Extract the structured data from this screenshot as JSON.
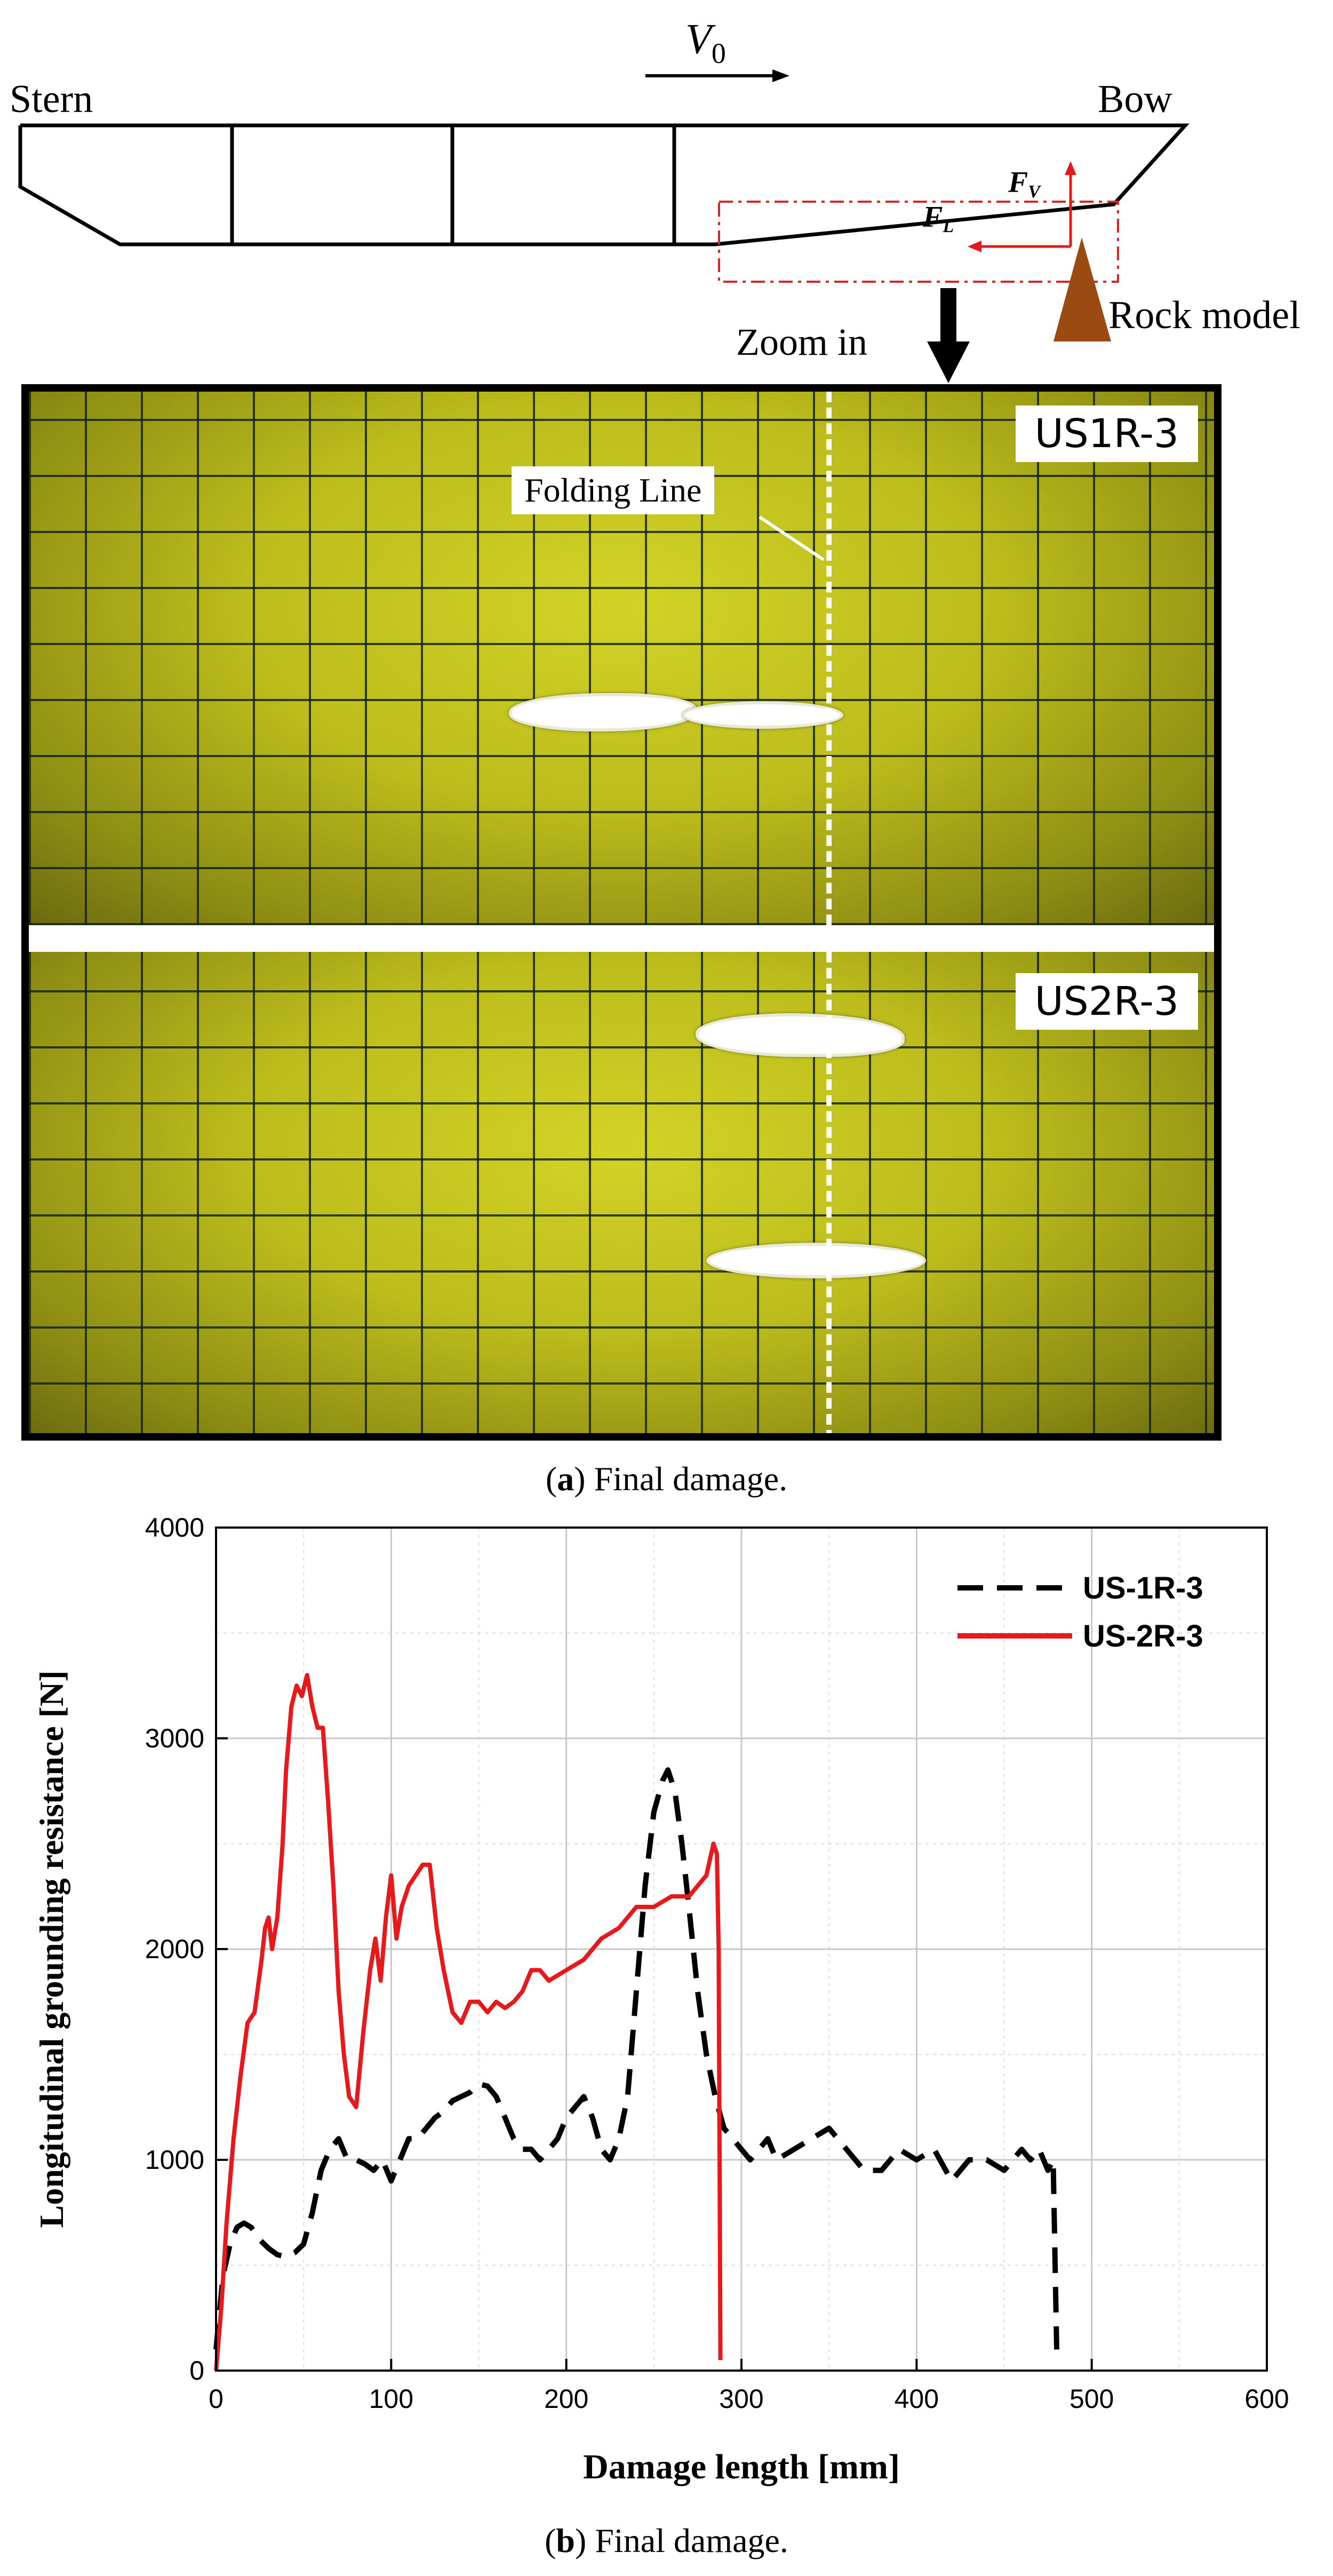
{
  "schematic": {
    "stern_label": "Stern",
    "bow_label": "Bow",
    "velocity_label": "V",
    "velocity_subscript": "0",
    "fv_label": "F",
    "fv_subscript": "V",
    "fl_label": "F",
    "fl_subscript": "L",
    "rock_label": "Rock model",
    "zoom_label": "Zoom in"
  },
  "photos": {
    "top_label": "US1R-3",
    "bottom_label": "US2R-3",
    "folding_line_label": "Folding Line"
  },
  "caption_a": {
    "letter": "a",
    "text": " Final damage."
  },
  "caption_b": {
    "letter": "b",
    "text": " Final damage."
  },
  "colors": {
    "us1": "#000000",
    "us2": "#e8191c",
    "photo": "#c5c520",
    "rock": "#9b4a12",
    "force": "#e31a1c"
  },
  "chart_data": {
    "type": "line",
    "xlabel": "Damage length [mm]",
    "ylabel": "Longitudinal grounding resistance [N]",
    "xlim": [
      0,
      600
    ],
    "ylim": [
      0,
      4000
    ],
    "xticks": [
      0,
      100,
      200,
      300,
      400,
      500,
      600
    ],
    "yticks": [
      0,
      1000,
      2000,
      3000,
      4000
    ],
    "grid": true,
    "legend_position": "top-right",
    "series": [
      {
        "name": "US-1R-3",
        "color": "#000000",
        "style": "dashed",
        "x": [
          0,
          4,
          8,
          12,
          16,
          20,
          25,
          30,
          35,
          40,
          45,
          50,
          55,
          60,
          65,
          70,
          75,
          80,
          85,
          90,
          95,
          100,
          105,
          110,
          115,
          120,
          125,
          130,
          135,
          140,
          145,
          150,
          155,
          160,
          165,
          170,
          175,
          180,
          185,
          190,
          195,
          200,
          205,
          210,
          215,
          220,
          225,
          230,
          235,
          240,
          245,
          250,
          255,
          258,
          262,
          266,
          270,
          275,
          280,
          285,
          290,
          295,
          300,
          305,
          310,
          315,
          320,
          330,
          340,
          350,
          360,
          370,
          380,
          390,
          400,
          410,
          420,
          430,
          440,
          450,
          460,
          465,
          470,
          475,
          478,
          480
        ],
        "y": [
          100,
          450,
          600,
          680,
          700,
          680,
          620,
          580,
          550,
          540,
          560,
          600,
          750,
          950,
          1050,
          1100,
          1000,
          1000,
          980,
          950,
          1000,
          900,
          1000,
          1100,
          1100,
          1150,
          1200,
          1230,
          1280,
          1300,
          1320,
          1360,
          1350,
          1300,
          1200,
          1100,
          1050,
          1050,
          1000,
          1050,
          1100,
          1200,
          1250,
          1300,
          1200,
          1050,
          1000,
          1100,
          1300,
          1800,
          2300,
          2650,
          2800,
          2850,
          2750,
          2500,
          2200,
          1800,
          1500,
          1300,
          1150,
          1100,
          1050,
          1000,
          1050,
          1100,
          1000,
          1050,
          1100,
          1150,
          1050,
          950,
          950,
          1050,
          1000,
          1050,
          900,
          1000,
          1000,
          950,
          1050,
          1000,
          1050,
          950,
          1000,
          100
        ]
      },
      {
        "name": "US-2R-3",
        "color": "#e8191c",
        "style": "solid",
        "x": [
          0,
          3,
          6,
          10,
          14,
          18,
          22,
          26,
          28,
          30,
          32,
          35,
          38,
          40,
          43,
          46,
          49,
          52,
          55,
          58,
          61,
          64,
          67,
          70,
          73,
          76,
          80,
          84,
          88,
          91,
          94,
          97,
          100,
          103,
          106,
          110,
          114,
          118,
          122,
          126,
          130,
          135,
          140,
          145,
          150,
          155,
          160,
          165,
          170,
          175,
          180,
          185,
          190,
          200,
          210,
          220,
          230,
          240,
          250,
          260,
          270,
          275,
          280,
          284,
          286,
          287,
          288
        ],
        "y": [
          0,
          300,
          700,
          1100,
          1400,
          1650,
          1700,
          1950,
          2100,
          2150,
          2000,
          2150,
          2500,
          2850,
          3150,
          3250,
          3200,
          3300,
          3150,
          3050,
          3050,
          2700,
          2300,
          1800,
          1500,
          1300,
          1250,
          1600,
          1900,
          2050,
          1850,
          2150,
          2350,
          2050,
          2200,
          2300,
          2350,
          2400,
          2400,
          2100,
          1900,
          1700,
          1650,
          1750,
          1750,
          1700,
          1750,
          1720,
          1750,
          1800,
          1900,
          1900,
          1850,
          1900,
          1950,
          2050,
          2100,
          2200,
          2200,
          2250,
          2250,
          2300,
          2350,
          2500,
          2450,
          2000,
          50
        ]
      }
    ]
  }
}
